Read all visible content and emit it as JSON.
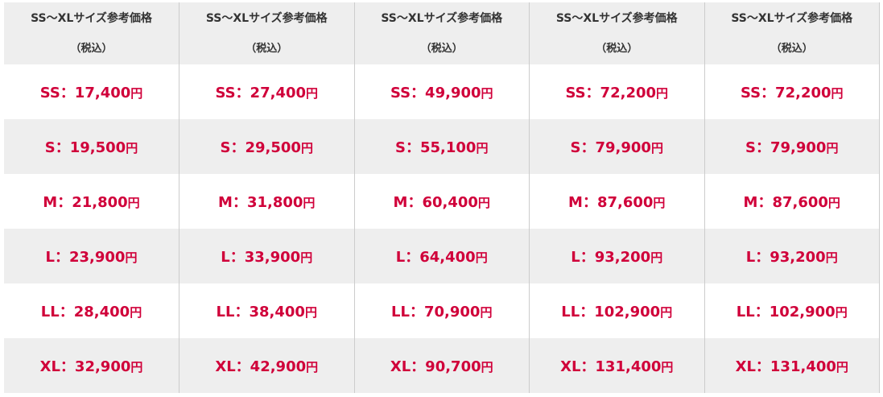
{
  "colors": {
    "price_text": "#d0003a",
    "header_bg": "#eeeeee",
    "stripe_bg": "#eeeeee",
    "border": "#cccccc"
  },
  "header": {
    "title": "SS～XLサイズ参考価格",
    "subtitle": "（税込）"
  },
  "currency": "円",
  "columns": [
    {
      "SS": "SS：17,400",
      "S": "S：19,500",
      "M": "M：21,800",
      "L": "L：23,900",
      "LL": "LL：28,400",
      "XL": "XL：32,900"
    },
    {
      "SS": "SS：27,400",
      "S": "S：29,500",
      "M": "M：31,800",
      "L": "L：33,900",
      "LL": "LL：38,400",
      "XL": "XL：42,900"
    },
    {
      "SS": "SS：49,900",
      "S": "S：55,100",
      "M": "M：60,400",
      "L": "L：64,400",
      "LL": "LL：70,900",
      "XL": "XL：90,700"
    },
    {
      "SS": "SS：72,200",
      "S": "S：79,900",
      "M": "M：87,600",
      "L": "L：93,200",
      "LL": "LL：102,900",
      "XL": "XL：131,400"
    },
    {
      "SS": "SS：72,200",
      "S": "S：79,900",
      "M": "M：87,600",
      "L": "L：93,200",
      "LL": "LL：102,900",
      "XL": "XL：131,400"
    }
  ]
}
